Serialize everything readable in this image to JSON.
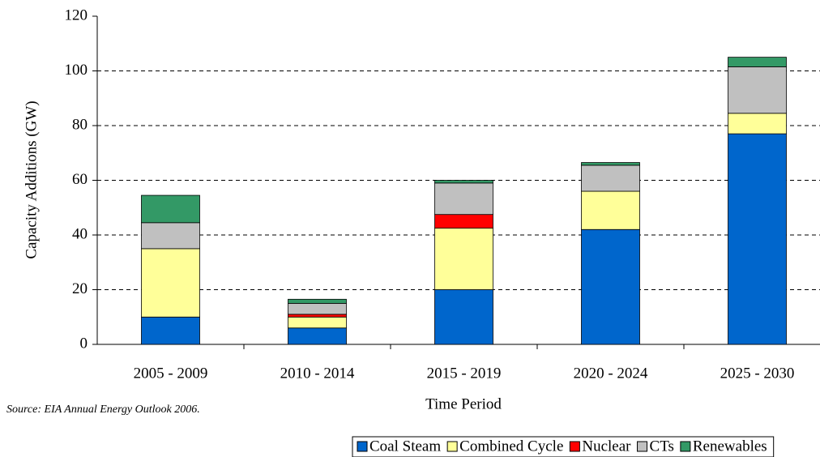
{
  "chart_data": {
    "type": "stacked_bar",
    "categories": [
      "2005 - 2009",
      "2010 - 2014",
      "2015 - 2019",
      "2020 - 2024",
      "2025 - 2030"
    ],
    "series": [
      {
        "name": "Coal Steam",
        "color": "#0066cc",
        "values": [
          10,
          6,
          20,
          42,
          77
        ]
      },
      {
        "name": "Combined Cycle",
        "color": "#ffff99",
        "values": [
          25,
          4,
          22.5,
          14,
          7.5
        ]
      },
      {
        "name": "Nuclear",
        "color": "#ff0000",
        "values": [
          0,
          1,
          5,
          0,
          0
        ]
      },
      {
        "name": "CTs",
        "color": "#c0c0c0",
        "values": [
          9.5,
          4,
          11.5,
          9.5,
          17
        ]
      },
      {
        "name": "Renewables",
        "color": "#339966",
        "values": [
          10,
          1.5,
          1,
          1,
          3.5
        ]
      }
    ],
    "ylim": [
      0,
      120
    ],
    "yticks": [
      0,
      20,
      40,
      60,
      80,
      100,
      120
    ],
    "grid": true,
    "y_label": "Capacity Additions (GW)",
    "x_label": "Time Period",
    "source": "Source:  EIA Annual Energy Outlook 2006.",
    "legend": "bottom"
  }
}
